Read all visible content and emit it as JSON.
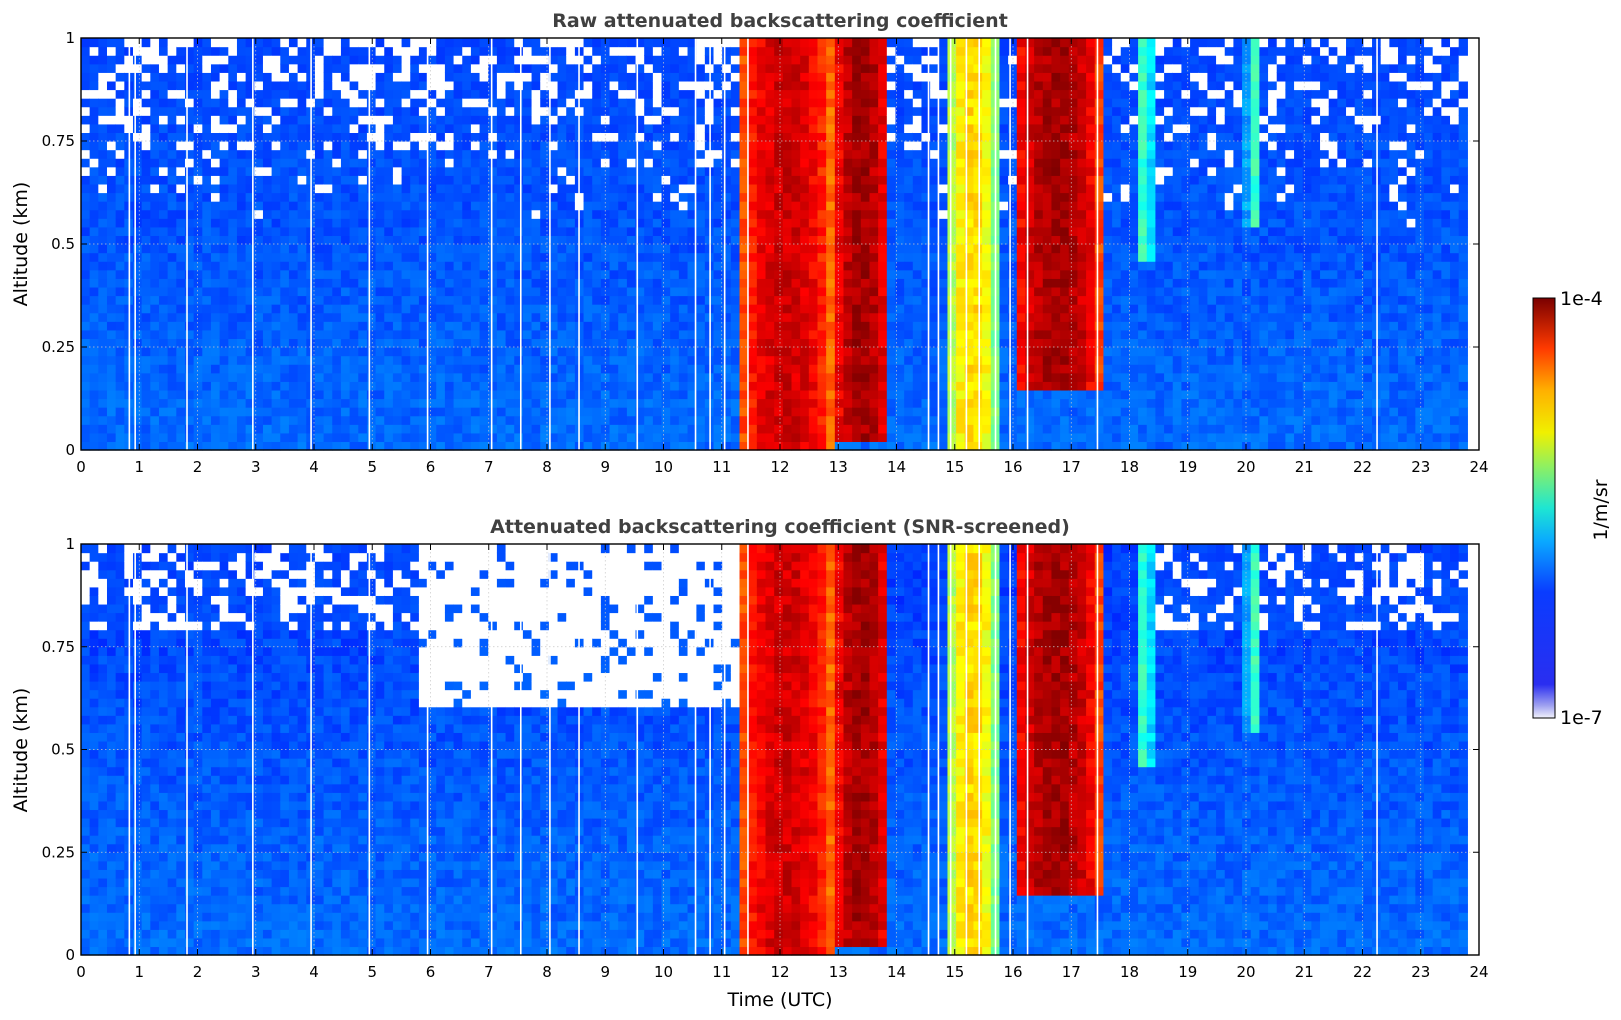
{
  "chart_data": {
    "type": "heatmap",
    "colorbar": {
      "max_label": "1e-4",
      "min_label": "1e-7",
      "unit_label": "1/m/sr",
      "colormap": "jet",
      "scale": "log",
      "range": [
        1e-07,
        0.0001
      ]
    },
    "xlabel": "Time (UTC)",
    "panels": [
      {
        "title": "Raw attenuated backscattering coefficient",
        "ylabel": "Altitude (km)",
        "xlim": [
          0,
          24
        ],
        "ylim": [
          0,
          1
        ],
        "x_ticks": [
          "0",
          "1",
          "2",
          "3",
          "4",
          "5",
          "6",
          "7",
          "8",
          "9",
          "10",
          "11",
          "12",
          "13",
          "14",
          "15",
          "16",
          "17",
          "18",
          "19",
          "20",
          "21",
          "22",
          "23",
          "24"
        ],
        "y_ticks": [
          "0",
          "0.25",
          "0.5",
          "0.75",
          "1"
        ],
        "grid": true,
        "snr_screened": false
      },
      {
        "title": "Attenuated backscattering coefficient (SNR-screened)",
        "ylabel": "Altitude (km)",
        "xlim": [
          0,
          24
        ],
        "ylim": [
          0,
          1
        ],
        "x_ticks": [
          "0",
          "1",
          "2",
          "3",
          "4",
          "5",
          "6",
          "7",
          "8",
          "9",
          "10",
          "11",
          "12",
          "13",
          "14",
          "15",
          "16",
          "17",
          "18",
          "19",
          "20",
          "21",
          "22",
          "23",
          "24"
        ],
        "y_ticks": [
          "0",
          "0.25",
          "0.5",
          "0.75",
          "1"
        ],
        "grid": true,
        "snr_screened": true
      }
    ],
    "data_end_time": 23.8,
    "gap_times": [
      0.83,
      0.93,
      1.82,
      2.95,
      3.95,
      4.95,
      5.95,
      7.05,
      7.55,
      8.05,
      8.55,
      9.55,
      10.55,
      10.8,
      11.05,
      11.45,
      14.55,
      14.72,
      14.93,
      15.2,
      15.42,
      15.7,
      15.95,
      16.25,
      17.45,
      22.25
    ],
    "cloud_events": [
      {
        "t_start": 11.3,
        "t_end": 12.9,
        "base_km": 0.0,
        "peak_value": 6e-05
      },
      {
        "t_start": 12.9,
        "t_end": 13.9,
        "base_km": 0.02,
        "peak_value": 8e-05
      },
      {
        "t_start": 14.9,
        "t_end": 15.7,
        "base_km": 0.0,
        "peak_value": 1e-05
      },
      {
        "t_start": 16.0,
        "t_end": 17.5,
        "base_km": 0.15,
        "peak_value": 8e-05
      },
      {
        "t_start": 18.1,
        "t_end": 18.4,
        "base_km": 0.45,
        "peak_value": 2e-06
      },
      {
        "t_start": 20.0,
        "t_end": 20.3,
        "base_km": 0.55,
        "peak_value": 2e-06
      }
    ]
  }
}
